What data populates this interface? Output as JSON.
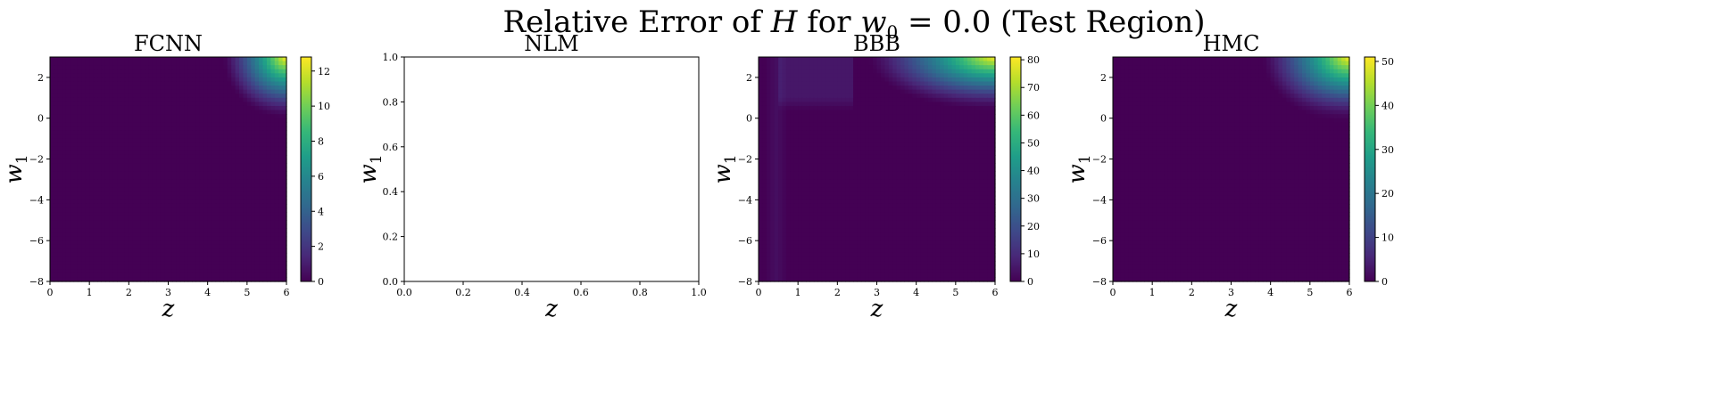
{
  "title": {
    "prefix": "Relative Error of ",
    "var": "H",
    "mid": " for ",
    "w_var": "w",
    "w_sub": "0",
    "eq": " = 0.0 (Test Region)"
  },
  "colors": {
    "viridis": [
      "#440154",
      "#482878",
      "#3e4989",
      "#31688e",
      "#26828e",
      "#1f9e89",
      "#35b779",
      "#6ece58",
      "#b5de2b",
      "#fde725"
    ]
  },
  "chart_data": [
    {
      "type": "heatmap",
      "title": "FCNN",
      "xlabel": "z",
      "ylabel": "w",
      "ylabel_sub": "1",
      "xlim": [
        0,
        6
      ],
      "ylim": [
        -8,
        3
      ],
      "xticks": [
        "0",
        "1",
        "2",
        "3",
        "4",
        "5",
        "6"
      ],
      "yticks": [
        "2",
        "0",
        "−2",
        "−4",
        "−6",
        "−8"
      ],
      "ytick_values": [
        2,
        0,
        -2,
        -4,
        -6,
        -8
      ],
      "colorbar": {
        "min": 0,
        "max": 12.8,
        "ticks": [
          "0",
          "2",
          "4",
          "6",
          "8",
          "10",
          "12"
        ],
        "tick_values": [
          0,
          2,
          4,
          6,
          8,
          10,
          12
        ]
      },
      "features": [
        {
          "kind": "corner_blob",
          "z0": 6.0,
          "w0": 3.0,
          "z_scale": 1.6,
          "w_scale": 3.0,
          "peak": 12.8,
          "w_cut": 0.0,
          "w_soft": 0.35
        }
      ]
    },
    {
      "type": "empty",
      "title": "NLM",
      "xlabel": "z",
      "ylabel": "w",
      "ylabel_sub": "1",
      "xlim": [
        0,
        1
      ],
      "ylim": [
        0,
        1
      ],
      "xticks": [
        "0.0",
        "0.2",
        "0.4",
        "0.6",
        "0.8",
        "1.0"
      ],
      "xtick_values": [
        0,
        0.2,
        0.4,
        0.6,
        0.8,
        1.0
      ],
      "yticks": [
        "0.0",
        "0.2",
        "0.4",
        "0.6",
        "0.8",
        "1.0"
      ],
      "ytick_values": [
        0,
        0.2,
        0.4,
        0.6,
        0.8,
        1.0
      ]
    },
    {
      "type": "heatmap",
      "title": "BBB",
      "xlabel": "z",
      "ylabel": "w",
      "ylabel_sub": "1",
      "xlim": [
        0,
        6
      ],
      "ylim": [
        -8,
        3
      ],
      "xticks": [
        "0",
        "1",
        "2",
        "3",
        "4",
        "5",
        "6"
      ],
      "yticks": [
        "2",
        "0",
        "−2",
        "−4",
        "−6",
        "−8"
      ],
      "ytick_values": [
        2,
        0,
        -2,
        -4,
        -6,
        -8
      ],
      "colorbar": {
        "min": 0,
        "max": 81,
        "ticks": [
          "0",
          "10",
          "20",
          "30",
          "40",
          "50",
          "60",
          "70",
          "80"
        ],
        "tick_values": [
          0,
          10,
          20,
          30,
          40,
          50,
          60,
          70,
          80
        ]
      },
      "features": [
        {
          "kind": "corner_blob",
          "z0": 6.0,
          "w0": 3.0,
          "z_scale": 3.2,
          "w_scale": 2.6,
          "peak": 81,
          "w_cut": 0.3,
          "w_soft": 0.5
        },
        {
          "kind": "band",
          "z_from": 0.5,
          "z_to": 2.4,
          "w_from": 0.4,
          "w_to": 3.0,
          "value": 5
        },
        {
          "kind": "stripe",
          "z": 0.45,
          "width": 0.3,
          "w_from": -8,
          "w_to": 3,
          "value": 3
        }
      ]
    },
    {
      "type": "heatmap",
      "title": "HMC",
      "xlabel": "z",
      "ylabel": "w",
      "ylabel_sub": "1",
      "xlim": [
        0,
        6
      ],
      "ylim": [
        -8,
        3
      ],
      "xticks": [
        "0",
        "1",
        "2",
        "3",
        "4",
        "5",
        "6"
      ],
      "yticks": [
        "2",
        "0",
        "−2",
        "−4",
        "−6",
        "−8"
      ],
      "ytick_values": [
        2,
        0,
        -2,
        -4,
        -6,
        -8
      ],
      "colorbar": {
        "min": 0,
        "max": 51,
        "ticks": [
          "0",
          "10",
          "20",
          "30",
          "40",
          "50"
        ],
        "tick_values": [
          0,
          10,
          20,
          30,
          40,
          50
        ]
      },
      "features": [
        {
          "kind": "corner_blob",
          "z0": 6.0,
          "w0": 3.0,
          "z_scale": 2.2,
          "w_scale": 3.2,
          "peak": 51,
          "w_cut": 0.2,
          "w_soft": 0.45
        }
      ]
    }
  ]
}
